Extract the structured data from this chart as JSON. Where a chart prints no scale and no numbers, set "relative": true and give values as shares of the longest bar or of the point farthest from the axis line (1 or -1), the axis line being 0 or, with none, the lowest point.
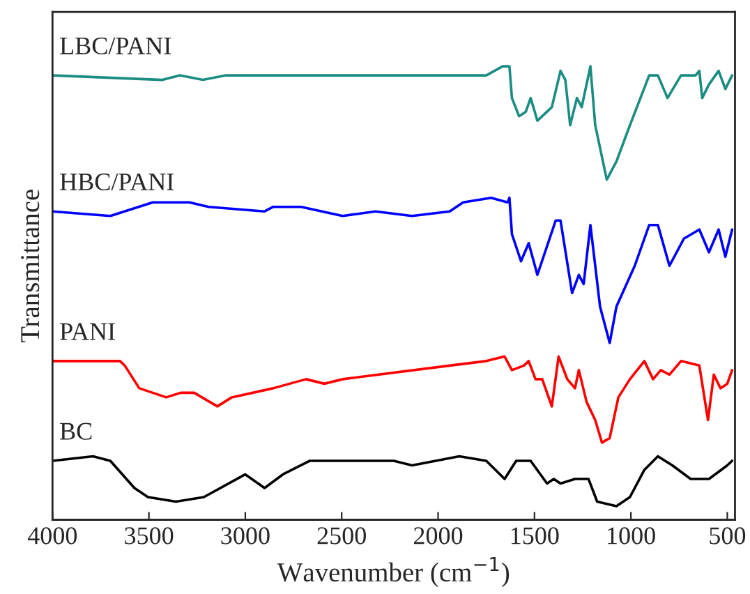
{
  "chart_data": {
    "type": "line",
    "relative": true,
    "xlabel": "Wavenumber (cm$^{−1}$)",
    "ylabel": "Transmittance",
    "xlim": [
      4000,
      460
    ],
    "xticks": [
      4000,
      3500,
      3000,
      2500,
      2000,
      1500,
      1000,
      500
    ],
    "legend": false,
    "grid": false,
    "tick_labels": "x",
    "series": [
      {
        "name": "LBC/PANI",
        "color": "#1a8c82",
        "x": [
          4000,
          3430,
          3340,
          3220,
          3100,
          2830,
          2620,
          1890,
          1750,
          1665,
          1630,
          1617,
          1580,
          1545,
          1520,
          1485,
          1410,
          1365,
          1340,
          1315,
          1280,
          1255,
          1210,
          1185,
          1125,
          1075,
          1005,
          905,
          860,
          810,
          740,
          665,
          645,
          630,
          595,
          545,
          510,
          475
        ],
        "values": [
          0.98,
          0.97,
          0.98,
          0.97,
          0.98,
          0.98,
          0.98,
          0.98,
          0.98,
          1.0,
          1.0,
          0.93,
          0.89,
          0.9,
          0.93,
          0.88,
          0.91,
          0.99,
          0.97,
          0.87,
          0.93,
          0.91,
          1.0,
          0.87,
          0.75,
          0.79,
          0.87,
          0.98,
          0.98,
          0.93,
          0.98,
          0.98,
          0.99,
          0.93,
          0.96,
          0.99,
          0.95,
          0.98
        ]
      },
      {
        "name": "HBC/PANI",
        "color": "#0000ff",
        "x": [
          4000,
          3700,
          3480,
          3290,
          3190,
          2900,
          2855,
          2710,
          2495,
          2325,
          2135,
          1940,
          1870,
          1725,
          1640,
          1630,
          1617,
          1570,
          1530,
          1485,
          1390,
          1365,
          1305,
          1270,
          1245,
          1210,
          1160,
          1110,
          1075,
          980,
          905,
          860,
          800,
          725,
          645,
          595,
          545,
          510,
          475
        ],
        "values": [
          0.68,
          0.67,
          0.7,
          0.7,
          0.69,
          0.68,
          0.69,
          0.69,
          0.67,
          0.68,
          0.67,
          0.68,
          0.7,
          0.71,
          0.7,
          0.71,
          0.63,
          0.57,
          0.61,
          0.54,
          0.66,
          0.66,
          0.5,
          0.54,
          0.52,
          0.65,
          0.47,
          0.39,
          0.47,
          0.56,
          0.65,
          0.65,
          0.56,
          0.62,
          0.64,
          0.59,
          0.64,
          0.58,
          0.64
        ]
      },
      {
        "name": "PANI",
        "color": "#ff0000",
        "x": [
          4000,
          3650,
          3625,
          3550,
          3410,
          3335,
          3265,
          3145,
          3070,
          2855,
          2685,
          2590,
          2495,
          1940,
          1750,
          1655,
          1617,
          1555,
          1530,
          1495,
          1460,
          1410,
          1375,
          1330,
          1290,
          1270,
          1230,
          1185,
          1150,
          1110,
          1065,
          1005,
          930,
          885,
          845,
          800,
          740,
          645,
          600,
          570,
          535,
          500,
          475
        ],
        "values": [
          0.35,
          0.35,
          0.34,
          0.29,
          0.27,
          0.28,
          0.28,
          0.25,
          0.27,
          0.29,
          0.31,
          0.3,
          0.31,
          0.34,
          0.35,
          0.36,
          0.33,
          0.34,
          0.35,
          0.31,
          0.31,
          0.25,
          0.36,
          0.31,
          0.29,
          0.33,
          0.26,
          0.22,
          0.17,
          0.18,
          0.27,
          0.31,
          0.35,
          0.31,
          0.33,
          0.32,
          0.35,
          0.34,
          0.22,
          0.32,
          0.29,
          0.3,
          0.33
        ]
      },
      {
        "name": "BC",
        "color": "#000000",
        "x": [
          4000,
          3790,
          3700,
          3575,
          3505,
          3360,
          3215,
          3000,
          2900,
          2805,
          2665,
          2495,
          2230,
          2135,
          1890,
          1750,
          1655,
          1595,
          1520,
          1435,
          1400,
          1365,
          1290,
          1220,
          1175,
          1075,
          1005,
          930,
          860,
          785,
          690,
          595,
          500,
          475
        ],
        "values": [
          0.13,
          0.14,
          0.13,
          0.07,
          0.05,
          0.04,
          0.05,
          0.1,
          0.07,
          0.1,
          0.13,
          0.13,
          0.13,
          0.12,
          0.14,
          0.13,
          0.09,
          0.13,
          0.13,
          0.08,
          0.09,
          0.08,
          0.09,
          0.09,
          0.04,
          0.03,
          0.05,
          0.11,
          0.14,
          0.12,
          0.09,
          0.09,
          0.12,
          0.13
        ]
      }
    ]
  }
}
